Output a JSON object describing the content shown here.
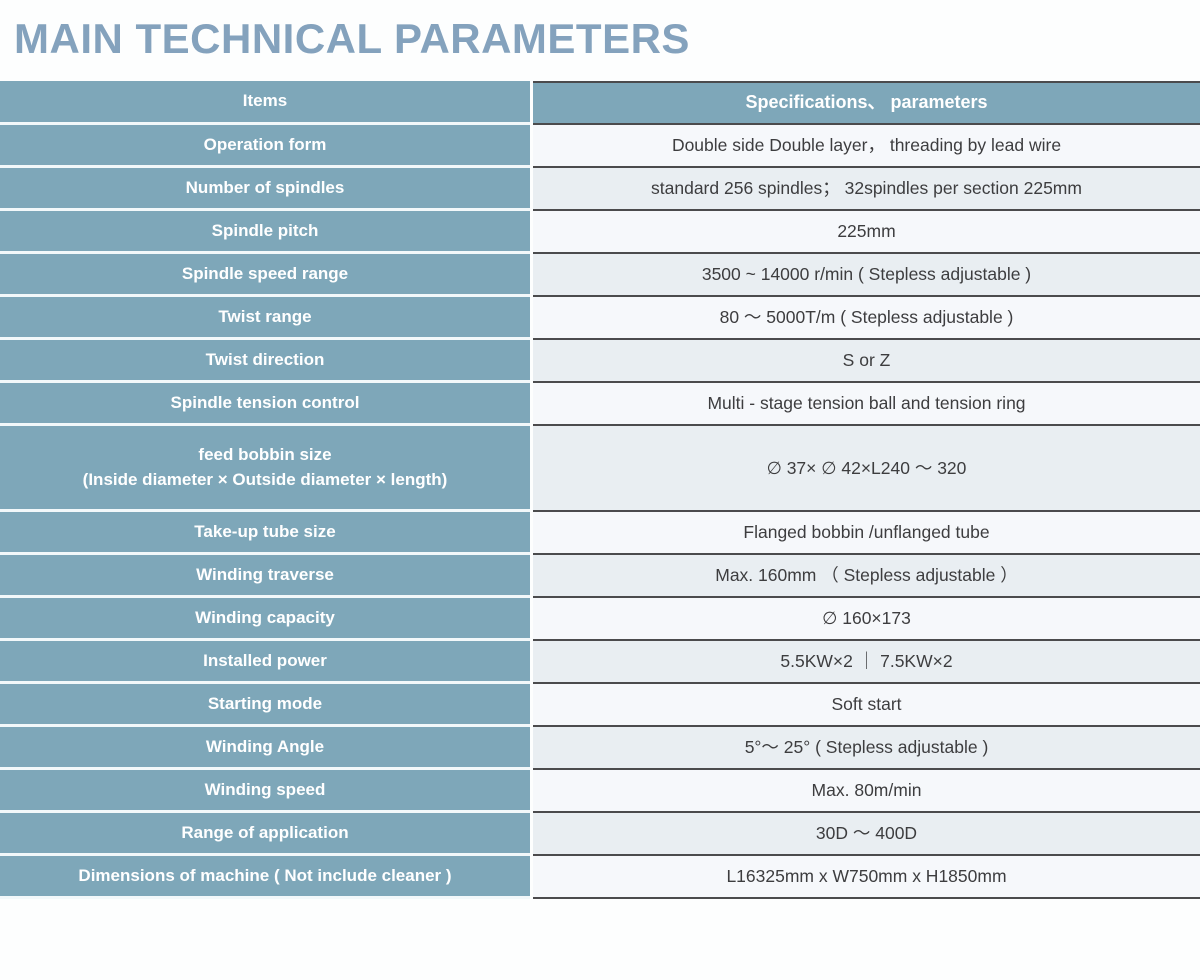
{
  "page": {
    "title": "MAIN TECHNICAL PARAMETERS"
  },
  "colors": {
    "title_blue": "#84a2bd",
    "accent_blue": "#7ea7b9",
    "row_light": "#f6f8fb",
    "row_alt": "#e9eef2",
    "border_dark": "#4b4b4d",
    "text_dark": "#3d3d3f"
  },
  "table": {
    "headers": {
      "items": "Items",
      "specifications": "Specifications、 parameters"
    },
    "rows": [
      {
        "item": "Operation form",
        "value": "Double side Double layer， threading by lead wire"
      },
      {
        "item": "Number of spindles",
        "value": "standard 256 spindles； 32spindles per section 225mm"
      },
      {
        "item": "Spindle pitch",
        "value": "225mm"
      },
      {
        "item": "Spindle speed range",
        "value": "3500 ~ 14000 r/min ( Stepless adjustable )"
      },
      {
        "item": "Twist range",
        "value": "80 ～ 5000T/m ( Stepless adjustable )"
      },
      {
        "item": "Twist direction",
        "value": "S or Z"
      },
      {
        "item": "Spindle tension control",
        "value": "Multi - stage tension ball and tension ring"
      },
      {
        "item": "feed bobbin size\n(Inside diameter × Outside diameter × length)",
        "value": "∅ 37× ∅ 42×L240 ～ 320",
        "tall": true
      },
      {
        "item": "Take-up tube size",
        "value": "Flanged bobbin /unflanged tube"
      },
      {
        "item": "Winding traverse",
        "value": "Max. 160mm （ Stepless adjustable ）"
      },
      {
        "item": "Winding capacity",
        "value": "∅ 160×173"
      },
      {
        "item": "Installed power",
        "value": "5.5KW×2 ｜ 7.5KW×2"
      },
      {
        "item": "Starting mode",
        "value": "Soft start"
      },
      {
        "item": "Winding Angle",
        "value": "5°～ 25° ( Stepless adjustable )"
      },
      {
        "item": "Winding speed",
        "value": "Max. 80m/min"
      },
      {
        "item": "Range of application",
        "value": "30D ～ 400D"
      },
      {
        "item": "Dimensions of machine ( Not include cleaner )",
        "value": "L16325mm x W750mm x H1850mm"
      }
    ]
  }
}
